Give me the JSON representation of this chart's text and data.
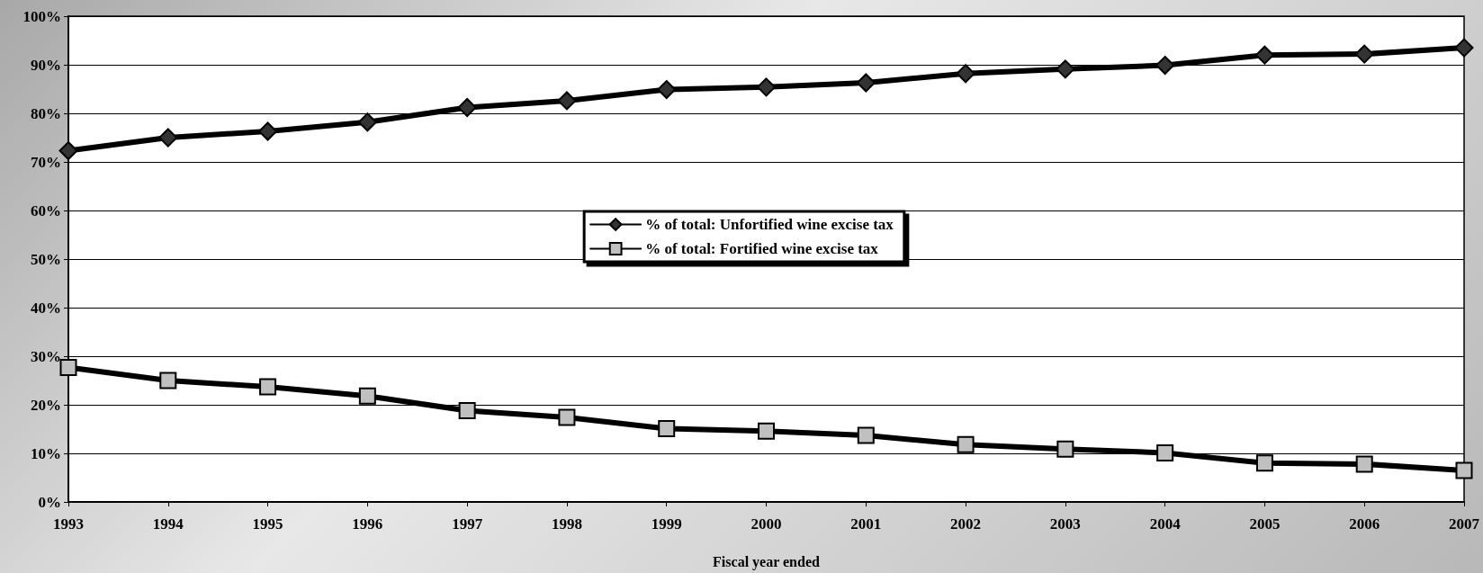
{
  "chart_data": {
    "type": "line",
    "xlabel": "Fiscal year ended",
    "categories": [
      "1993",
      "1994",
      "1995",
      "1996",
      "1997",
      "1998",
      "1999",
      "2000",
      "2001",
      "2002",
      "2003",
      "2004",
      "2005",
      "2006",
      "2007"
    ],
    "series": [
      {
        "name": "% of total: Unfortified wine excise tax",
        "color": "#000000",
        "marker": "diamond",
        "values": [
          72.3,
          75.0,
          76.3,
          78.2,
          81.2,
          82.6,
          84.9,
          85.4,
          86.3,
          88.2,
          89.1,
          89.9,
          92.0,
          92.2,
          93.5
        ]
      },
      {
        "name": "% of total: Fortified wine excise tax",
        "color": "#000000",
        "marker": "square",
        "values": [
          27.7,
          25.0,
          23.7,
          21.8,
          18.8,
          17.4,
          15.1,
          14.6,
          13.7,
          11.8,
          10.9,
          10.1,
          8.0,
          7.8,
          6.5
        ]
      }
    ],
    "ylim": [
      0,
      100
    ],
    "yticks": [
      {
        "value": 0,
        "label": "0%"
      },
      {
        "value": 10,
        "label": "10%"
      },
      {
        "value": 20,
        "label": "20%"
      },
      {
        "value": 30,
        "label": "30%"
      },
      {
        "value": 40,
        "label": "40%"
      },
      {
        "value": 50,
        "label": "50%"
      },
      {
        "value": 60,
        "label": "60%"
      },
      {
        "value": 70,
        "label": "70%"
      },
      {
        "value": 80,
        "label": "80%"
      },
      {
        "value": 90,
        "label": "90%"
      },
      {
        "value": 100,
        "label": "100%"
      }
    ],
    "grid": "y",
    "legend": "center",
    "line_style": "solid"
  }
}
